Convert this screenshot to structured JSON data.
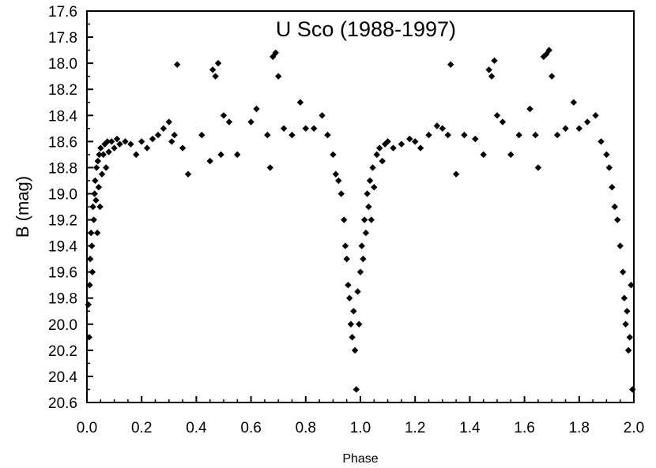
{
  "chart_data": {
    "type": "scatter",
    "title": "U Sco (1988-1997)",
    "xlabel": "Phase",
    "ylabel": "B (mag)",
    "xlim": [
      0.0,
      2.0
    ],
    "ylim": [
      17.6,
      20.6
    ],
    "y_inverted": true,
    "grid": false,
    "x_ticks": [
      "0.0",
      "0.2",
      "0.4",
      "0.6",
      "0.8",
      "1.0",
      "1.2",
      "1.4",
      "1.6",
      "1.8",
      "2.0"
    ],
    "y_ticks": [
      "17.6",
      "17.8",
      "18.0",
      "18.2",
      "18.4",
      "18.6",
      "18.8",
      "19.0",
      "19.2",
      "19.4",
      "19.6",
      "19.8",
      "20.0",
      "20.2",
      "20.4",
      "20.6"
    ],
    "marker_color": "#000000",
    "marker": "diamond",
    "series": [
      {
        "points": [
          [
            0.005,
            19.85
          ],
          [
            0.008,
            20.1
          ],
          [
            0.01,
            19.7
          ],
          [
            0.012,
            19.5
          ],
          [
            0.015,
            19.3
          ],
          [
            0.018,
            19.4
          ],
          [
            0.02,
            19.6
          ],
          [
            0.022,
            19.1
          ],
          [
            0.025,
            19.2
          ],
          [
            0.028,
            19.0
          ],
          [
            0.03,
            18.9
          ],
          [
            0.033,
            19.05
          ],
          [
            0.035,
            18.8
          ],
          [
            0.038,
            19.3
          ],
          [
            0.04,
            18.75
          ],
          [
            0.043,
            18.95
          ],
          [
            0.045,
            18.7
          ],
          [
            0.048,
            19.1
          ],
          [
            0.05,
            18.65
          ],
          [
            0.055,
            18.85
          ],
          [
            0.06,
            18.7
          ],
          [
            0.065,
            18.62
          ],
          [
            0.07,
            18.8
          ],
          [
            0.075,
            18.6
          ],
          [
            0.08,
            18.68
          ],
          [
            0.09,
            18.6
          ],
          [
            0.1,
            18.65
          ],
          [
            0.11,
            18.58
          ],
          [
            0.12,
            18.62
          ],
          [
            0.14,
            18.6
          ],
          [
            0.16,
            18.62
          ],
          [
            0.18,
            18.7
          ],
          [
            0.2,
            18.6
          ],
          [
            0.22,
            18.65
          ],
          [
            0.24,
            18.58
          ],
          [
            0.26,
            18.55
          ],
          [
            0.28,
            18.5
          ],
          [
            0.3,
            18.45
          ],
          [
            0.31,
            18.6
          ],
          [
            0.32,
            18.55
          ],
          [
            0.33,
            18.01
          ],
          [
            0.35,
            18.65
          ],
          [
            0.37,
            18.85
          ],
          [
            0.42,
            18.55
          ],
          [
            0.45,
            18.75
          ],
          [
            0.46,
            18.05
          ],
          [
            0.47,
            18.1
          ],
          [
            0.48,
            18.0
          ],
          [
            0.49,
            18.7
          ],
          [
            0.5,
            18.4
          ],
          [
            0.52,
            18.45
          ],
          [
            0.55,
            18.7
          ],
          [
            0.6,
            18.45
          ],
          [
            0.62,
            18.35
          ],
          [
            0.66,
            18.55
          ],
          [
            0.67,
            18.8
          ],
          [
            0.68,
            17.95
          ],
          [
            0.69,
            17.92
          ],
          [
            0.7,
            18.1
          ],
          [
            0.72,
            18.5
          ],
          [
            0.75,
            18.55
          ],
          [
            0.78,
            18.3
          ],
          [
            0.8,
            18.5
          ],
          [
            0.83,
            18.5
          ],
          [
            0.86,
            18.4
          ],
          [
            0.88,
            18.55
          ],
          [
            0.9,
            18.7
          ],
          [
            0.91,
            18.85
          ],
          [
            0.92,
            18.9
          ],
          [
            0.93,
            19.0
          ],
          [
            0.94,
            19.2
          ],
          [
            0.945,
            19.4
          ],
          [
            0.95,
            19.5
          ],
          [
            0.955,
            19.7
          ],
          [
            0.96,
            19.8
          ],
          [
            0.965,
            20.0
          ],
          [
            0.97,
            20.1
          ],
          [
            0.975,
            19.9
          ],
          [
            0.98,
            20.2
          ],
          [
            0.985,
            20.5
          ],
          [
            0.99,
            19.75
          ],
          [
            0.995,
            20.0
          ],
          [
            1.0,
            19.6
          ],
          [
            1.005,
            19.4
          ],
          [
            1.01,
            19.5
          ],
          [
            1.015,
            19.2
          ],
          [
            1.02,
            19.3
          ],
          [
            1.025,
            19.0
          ],
          [
            1.03,
            19.1
          ],
          [
            1.035,
            18.9
          ],
          [
            1.04,
            19.2
          ],
          [
            1.045,
            18.8
          ],
          [
            1.05,
            18.95
          ],
          [
            1.06,
            18.7
          ],
          [
            1.07,
            18.65
          ],
          [
            1.08,
            18.75
          ],
          [
            1.09,
            18.62
          ],
          [
            1.1,
            18.6
          ],
          [
            1.12,
            18.65
          ],
          [
            1.15,
            18.62
          ],
          [
            1.18,
            18.58
          ],
          [
            1.2,
            18.6
          ],
          [
            1.22,
            18.65
          ],
          [
            1.25,
            18.55
          ],
          [
            1.28,
            18.48
          ],
          [
            1.3,
            18.5
          ],
          [
            1.32,
            18.55
          ],
          [
            1.33,
            18.01
          ],
          [
            1.35,
            18.85
          ],
          [
            1.38,
            18.55
          ],
          [
            1.42,
            18.58
          ],
          [
            1.45,
            18.7
          ],
          [
            1.47,
            18.05
          ],
          [
            1.48,
            18.1
          ],
          [
            1.49,
            17.98
          ],
          [
            1.5,
            18.4
          ],
          [
            1.52,
            18.45
          ],
          [
            1.55,
            18.7
          ],
          [
            1.58,
            18.55
          ],
          [
            1.62,
            18.35
          ],
          [
            1.64,
            18.55
          ],
          [
            1.65,
            18.8
          ],
          [
            1.67,
            17.95
          ],
          [
            1.68,
            17.93
          ],
          [
            1.69,
            17.9
          ],
          [
            1.7,
            18.1
          ],
          [
            1.72,
            18.55
          ],
          [
            1.75,
            18.5
          ],
          [
            1.78,
            18.3
          ],
          [
            1.8,
            18.5
          ],
          [
            1.83,
            18.45
          ],
          [
            1.86,
            18.4
          ],
          [
            1.88,
            18.6
          ],
          [
            1.9,
            18.7
          ],
          [
            1.91,
            18.8
          ],
          [
            1.92,
            18.95
          ],
          [
            1.93,
            19.1
          ],
          [
            1.94,
            19.2
          ],
          [
            1.95,
            19.4
          ],
          [
            1.96,
            19.6
          ],
          [
            1.965,
            19.8
          ],
          [
            1.97,
            20.0
          ],
          [
            1.975,
            19.9
          ],
          [
            1.98,
            20.2
          ],
          [
            1.985,
            20.1
          ],
          [
            1.99,
            19.7
          ],
          [
            1.995,
            20.5
          ]
        ]
      }
    ]
  }
}
